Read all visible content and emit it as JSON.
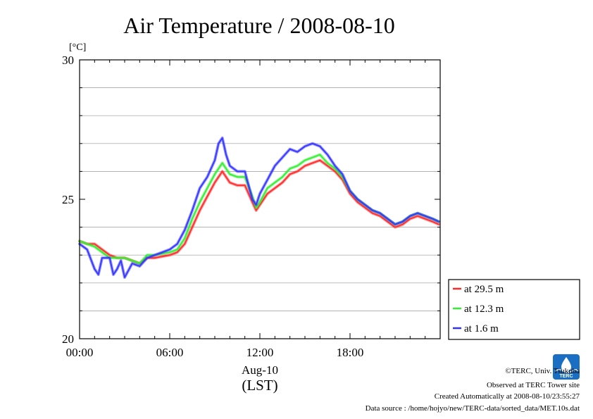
{
  "chart_data": {
    "type": "line",
    "title": "Air Temperature / 2008-08-10",
    "ylabel": "[°C]",
    "xlabel": "Aug-10",
    "xlabel_sub": "(LST)",
    "ylim": [
      20,
      30
    ],
    "xlim": [
      0,
      24
    ],
    "yticks": [
      20,
      25,
      30
    ],
    "ytick_labels": [
      "20",
      "25",
      "30"
    ],
    "ygrid": [
      21,
      22,
      23,
      24,
      26,
      27,
      28,
      29
    ],
    "xticks": [
      0,
      6,
      12,
      18
    ],
    "xtick_labels": [
      "00:00",
      "06:00",
      "12:00",
      "18:00"
    ],
    "grid": true,
    "legend_position": "right, below plot",
    "series": [
      {
        "name": "at 29.5 m",
        "color": "#ff2a2a",
        "x": [
          0,
          0.5,
          1,
          1.5,
          2,
          2.5,
          3,
          3.5,
          4,
          4.5,
          5,
          5.5,
          6,
          6.5,
          7,
          7.5,
          8,
          8.5,
          9,
          9.25,
          9.5,
          9.75,
          10,
          10.5,
          11,
          11.5,
          11.75,
          12,
          12.5,
          13,
          13.5,
          14,
          14.5,
          15,
          15.5,
          16,
          16.5,
          17,
          17.5,
          18,
          18.5,
          19,
          19.5,
          20,
          20.5,
          21,
          21.5,
          22,
          22.5,
          23,
          23.5,
          23.9
        ],
        "values": [
          23.5,
          23.4,
          23.4,
          23.2,
          23.0,
          22.9,
          22.9,
          22.8,
          22.7,
          22.9,
          22.9,
          22.95,
          23.0,
          23.1,
          23.4,
          24.0,
          24.6,
          25.1,
          25.6,
          25.8,
          26.0,
          25.8,
          25.6,
          25.5,
          25.5,
          24.9,
          24.6,
          24.8,
          25.2,
          25.4,
          25.6,
          25.9,
          26.0,
          26.2,
          26.3,
          26.4,
          26.2,
          26.0,
          25.7,
          25.2,
          24.9,
          24.7,
          24.5,
          24.4,
          24.2,
          24.0,
          24.1,
          24.3,
          24.4,
          24.3,
          24.2,
          24.1
        ]
      },
      {
        "name": "at 12.3 m",
        "color": "#33ee33",
        "x": [
          0,
          0.5,
          1,
          1.5,
          2,
          2.5,
          3,
          3.5,
          4,
          4.5,
          5,
          5.5,
          6,
          6.5,
          7,
          7.5,
          8,
          8.5,
          9,
          9.25,
          9.5,
          9.75,
          10,
          10.5,
          11,
          11.5,
          11.75,
          12,
          12.5,
          13,
          13.5,
          14,
          14.5,
          15,
          15.5,
          16,
          16.5,
          17,
          17.5,
          18,
          18.5,
          19,
          19.5,
          20,
          20.5,
          21,
          21.5,
          22,
          22.5,
          23,
          23.5,
          23.9
        ],
        "values": [
          23.5,
          23.4,
          23.3,
          23.1,
          22.9,
          22.9,
          22.9,
          22.8,
          22.7,
          23.0,
          23.0,
          23.05,
          23.1,
          23.2,
          23.6,
          24.3,
          24.9,
          25.4,
          25.9,
          26.1,
          26.3,
          26.1,
          25.9,
          25.8,
          25.8,
          25.1,
          24.7,
          24.9,
          25.4,
          25.6,
          25.8,
          26.1,
          26.2,
          26.4,
          26.5,
          26.6,
          26.3,
          26.1,
          25.8,
          25.3,
          25.0,
          24.8,
          24.6,
          24.5,
          24.3,
          24.1,
          24.2,
          24.4,
          24.5,
          24.4,
          24.3,
          24.2
        ]
      },
      {
        "name": "at 1.6 m",
        "color": "#3333ff",
        "x": [
          0,
          0.5,
          1,
          1.25,
          1.5,
          2,
          2.25,
          2.5,
          2.75,
          3,
          3.5,
          4,
          4.5,
          5,
          5.5,
          6,
          6.5,
          7,
          7.5,
          8,
          8.5,
          9,
          9.25,
          9.5,
          9.75,
          10,
          10.5,
          11,
          11.5,
          11.75,
          12,
          12.5,
          13,
          13.5,
          14,
          14.5,
          15,
          15.5,
          16,
          16.5,
          17,
          17.5,
          18,
          18.5,
          19,
          19.5,
          20,
          20.5,
          21,
          21.5,
          22,
          22.5,
          23,
          23.5,
          23.9
        ],
        "values": [
          23.4,
          23.2,
          22.5,
          22.3,
          22.9,
          22.9,
          22.3,
          22.5,
          22.8,
          22.2,
          22.7,
          22.6,
          22.9,
          23.0,
          23.1,
          23.2,
          23.4,
          23.9,
          24.6,
          25.4,
          25.8,
          26.4,
          27.0,
          27.2,
          26.6,
          26.2,
          26.0,
          26.0,
          25.0,
          24.8,
          25.2,
          25.7,
          26.2,
          26.5,
          26.8,
          26.7,
          26.9,
          27.0,
          26.9,
          26.6,
          26.2,
          25.9,
          25.3,
          25.0,
          24.8,
          24.6,
          24.5,
          24.3,
          24.1,
          24.2,
          24.4,
          24.5,
          24.4,
          24.3,
          24.2
        ]
      }
    ]
  },
  "footer": {
    "copyright": "©TERC, Univ. Tsukuba",
    "observed": "Observed at TERC Tower site",
    "created": "Created Automatically at 2008-08-10/23:55:27",
    "source": "Data source : /home/hojyo/new/TERC-data/sorted_data/MET.10s.dat"
  },
  "logo": {
    "text": "TERC"
  }
}
